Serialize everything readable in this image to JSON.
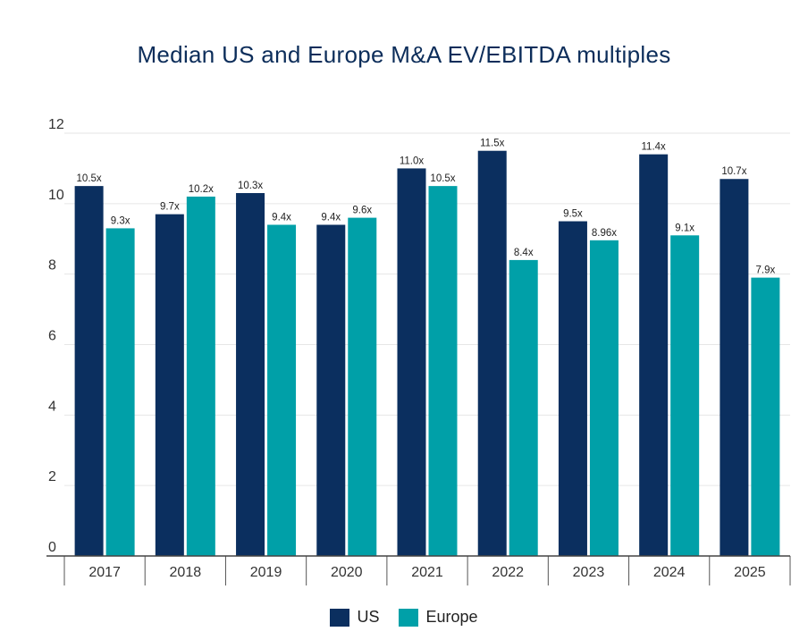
{
  "chart_data": {
    "type": "bar",
    "title": "Median US and Europe M&A EV/EBITDA multiples",
    "xlabel": "",
    "ylabel": "",
    "categories": [
      "2017",
      "2018",
      "2019",
      "2020",
      "2021",
      "2022",
      "2023",
      "2024",
      "2025"
    ],
    "series": [
      {
        "name": "US",
        "color": "#0b2f5f",
        "values": [
          10.5,
          9.7,
          10.3,
          9.4,
          11.0,
          11.5,
          9.5,
          11.4,
          10.7
        ],
        "labels": [
          "10.5x",
          "9.7x",
          "10.3x",
          "9.4x",
          "11.0x",
          "11.5x",
          "9.5x",
          "11.4x",
          "10.7x"
        ]
      },
      {
        "name": "Europe",
        "color": "#00a0a8",
        "values": [
          9.3,
          10.2,
          9.4,
          9.6,
          10.5,
          8.4,
          8.96,
          9.1,
          7.9
        ],
        "labels": [
          "9.3x",
          "10.2x",
          "9.4x",
          "9.6x",
          "10.5x",
          "8.4x",
          "8.96x",
          "9.1x",
          "7.9x"
        ]
      }
    ],
    "ylim": [
      0,
      12
    ],
    "yticks": [
      0,
      2,
      4,
      6,
      8,
      10,
      12
    ],
    "grid": true,
    "legend": "bottom-center"
  }
}
